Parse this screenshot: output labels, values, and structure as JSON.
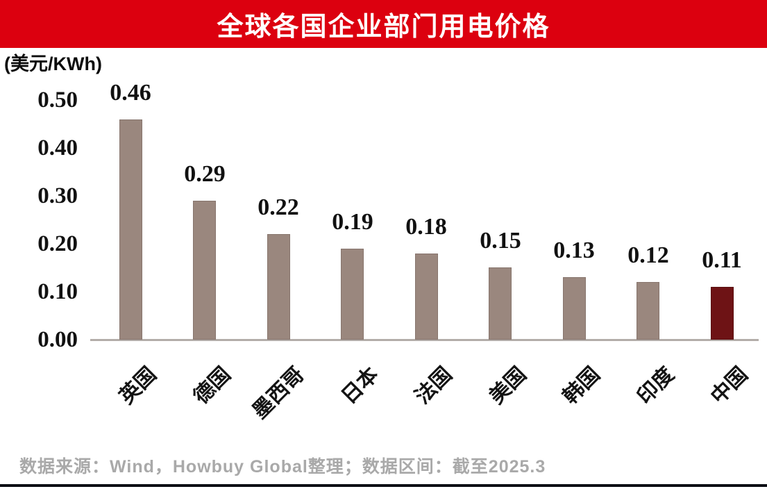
{
  "title": "全球各国企业部门用电价格",
  "unit_label": "(美元/KWh)",
  "footer": {
    "text": "数据来源：Wind，Howbuy Global整理；数据区间：截至2025.3"
  },
  "colors": {
    "banner_red": "#dc000f",
    "title_text": "#ffffff",
    "bar_default": "#9a877e",
    "bar_default_edge": "#87756d",
    "bar_highlight": "#6e1315",
    "bar_highlight_edge": "#590f10",
    "axis_line": "#b3ada9",
    "footer_text": "#a9a9a9",
    "bottom_rule": "#0b0e14"
  },
  "chart_data": {
    "type": "bar",
    "title": "全球各国企业部门用电价格",
    "ylabel": "(美元/KWh)",
    "xlabel": "",
    "categories": [
      "英国",
      "德国",
      "墨西哥",
      "日本",
      "法国",
      "美国",
      "韩国",
      "印度",
      "中国"
    ],
    "values": [
      0.46,
      0.29,
      0.22,
      0.19,
      0.18,
      0.15,
      0.13,
      0.12,
      0.11
    ],
    "data_labels": [
      "0.46",
      "0.29",
      "0.22",
      "0.19",
      "0.18",
      "0.15",
      "0.13",
      "0.12",
      "0.11"
    ],
    "highlight_category": "中国",
    "ytick_labels": [
      "0.00",
      "0.10",
      "0.20",
      "0.30",
      "0.40",
      "0.50"
    ],
    "yticks": [
      0.0,
      0.1,
      0.2,
      0.3,
      0.4,
      0.5
    ],
    "ylim": [
      0,
      0.5
    ],
    "grid": false,
    "legend": false,
    "source_note": "数据来源：Wind，Howbuy Global整理；数据区间：截至2025.3"
  }
}
